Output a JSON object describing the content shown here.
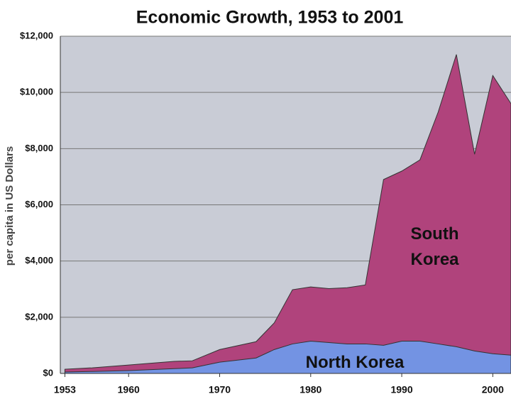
{
  "chart_data": {
    "type": "area",
    "title": "Economic Growth, 1953 to 2001",
    "y_label": "per capita in US Dollars",
    "x": [
      1953,
      1956,
      1960,
      1965,
      1967,
      1970,
      1974,
      1976,
      1978,
      1980,
      1982,
      1984,
      1986,
      1988,
      1990,
      1992,
      1994,
      1996,
      1998,
      2000,
      2002
    ],
    "series": [
      {
        "name": "South Korea",
        "color": "#b0437c",
        "values": [
          150,
          200,
          300,
          430,
          450,
          850,
          1130,
          1800,
          2980,
          3080,
          3020,
          3050,
          3150,
          6900,
          7200,
          7600,
          9300,
          11350,
          7800,
          10600,
          9600
        ]
      },
      {
        "name": "North Korea",
        "color": "#7393e3",
        "values": [
          50,
          70,
          100,
          170,
          200,
          400,
          550,
          850,
          1050,
          1150,
          1100,
          1050,
          1050,
          1000,
          1150,
          1150,
          1050,
          950,
          800,
          700,
          650
        ]
      }
    ],
    "xlim": [
      1952.5,
      2002
    ],
    "xticks": [
      1953,
      1960,
      1970,
      1980,
      1990,
      2000
    ],
    "ylim": [
      0,
      12000
    ],
    "yticks": [
      {
        "value": 0,
        "label": "$0"
      },
      {
        "value": 2000,
        "label": "$2,000"
      },
      {
        "value": 4000,
        "label": "$4,000"
      },
      {
        "value": 6000,
        "label": "$6,000"
      },
      {
        "value": 8000,
        "label": "$8,000"
      },
      {
        "value": 10000,
        "label": "$10,000"
      },
      {
        "value": 12000,
        "label": "$12,000"
      }
    ],
    "grid": true,
    "background": "#c9ccd6"
  }
}
